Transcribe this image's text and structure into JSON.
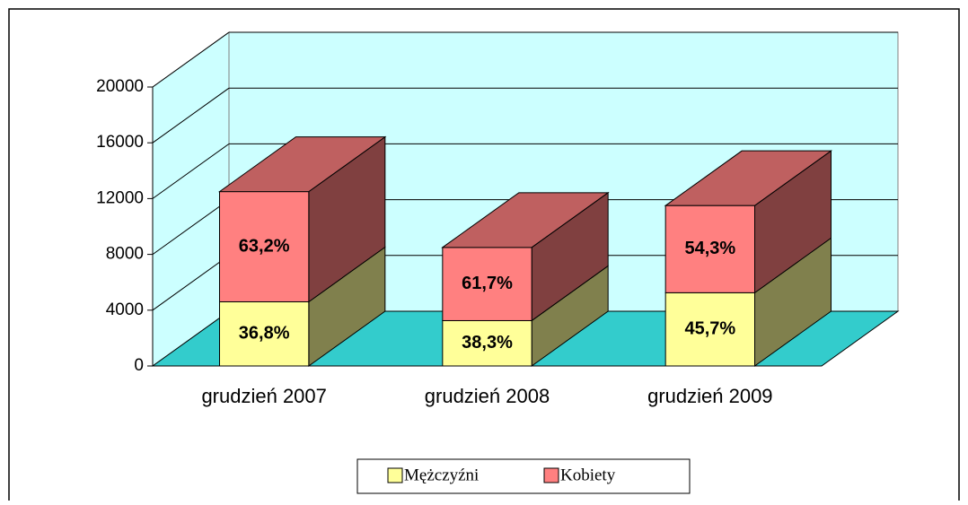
{
  "chart_data": {
    "type": "bar3d_stacked",
    "categories": [
      "grudzień 2007",
      "grudzień 2008",
      "grudzień 2009"
    ],
    "series": [
      {
        "name": "Mężczyźni",
        "color": "#ffff99",
        "values": [
          4600,
          3250,
          5250
        ],
        "share_labels": [
          "36,8%",
          "38,3%",
          "45,7%"
        ]
      },
      {
        "name": "Kobiety",
        "color": "#ff8080",
        "values": [
          7900,
          5250,
          6250
        ],
        "share_labels": [
          "63,2%",
          "61,7%",
          "54,3%"
        ]
      }
    ],
    "ylim": [
      0,
      20000
    ],
    "yticks": [
      0,
      4000,
      8000,
      12000,
      16000,
      20000
    ],
    "grid": true,
    "legend": "bottom"
  }
}
